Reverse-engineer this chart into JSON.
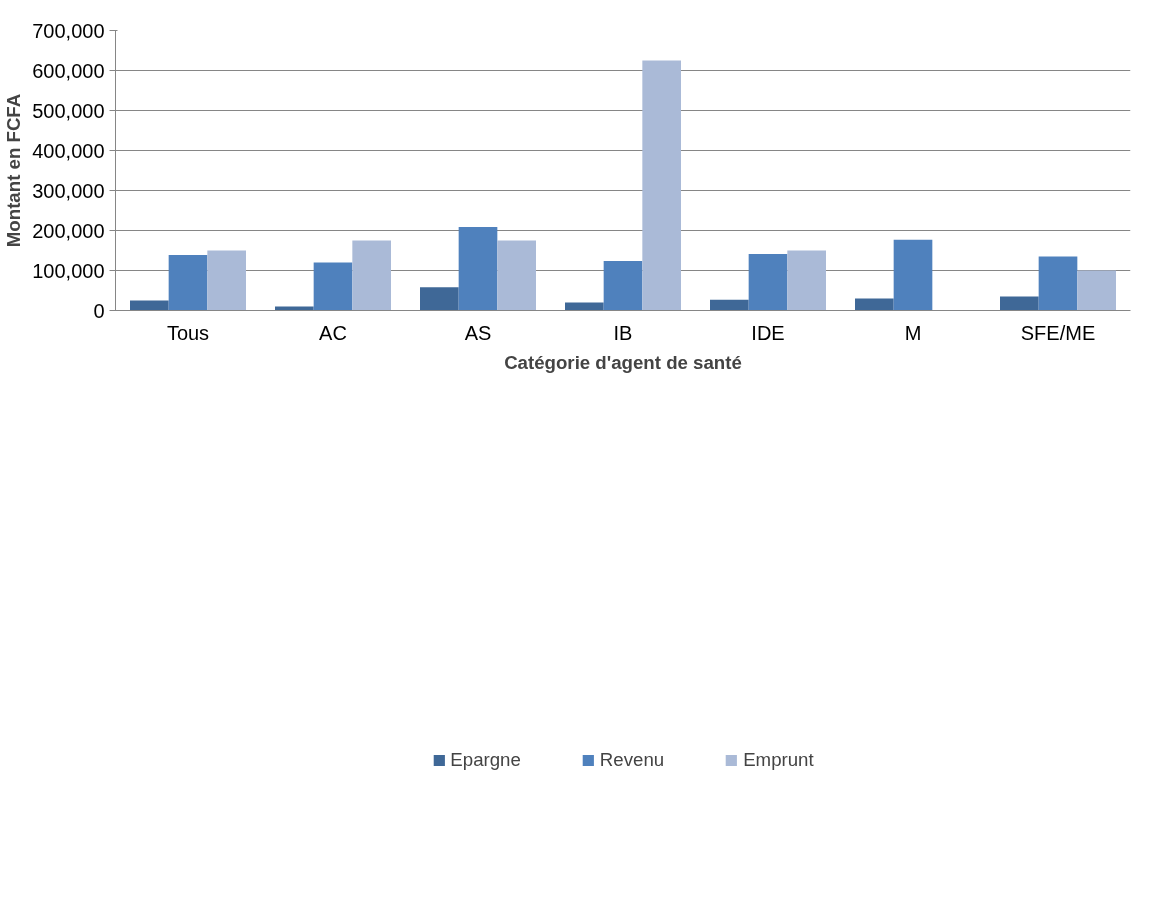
{
  "chart_data": {
    "type": "bar",
    "xlabel": "Catégorie d'agent de santé",
    "ylabel": "Montant en FCFA",
    "categories": [
      "Tous",
      "AC",
      "AS",
      "IB",
      "IDE",
      "M",
      "SFE/ME"
    ],
    "series": [
      {
        "name": "Epargne",
        "color": "#3f6897",
        "values": [
          25000,
          10000,
          58000,
          20000,
          27000,
          30000,
          35000
        ]
      },
      {
        "name": "Revenu",
        "color": "#4f81bd",
        "values": [
          139000,
          120000,
          209000,
          124000,
          141000,
          177000,
          135000
        ]
      },
      {
        "name": "Emprunt",
        "color": "#aabad7",
        "values": [
          150000,
          175000,
          175000,
          625000,
          150000,
          null,
          100000
        ]
      }
    ],
    "ylim": [
      0,
      700000
    ],
    "yticks": [
      {
        "value": 0,
        "label": "0"
      },
      {
        "value": 100000,
        "label": "100,000"
      },
      {
        "value": 200000,
        "label": "200,000"
      },
      {
        "value": 300000,
        "label": "300,000"
      },
      {
        "value": 400000,
        "label": "400,000"
      },
      {
        "value": 500000,
        "label": "500,000"
      },
      {
        "value": 600000,
        "label": "600,000"
      },
      {
        "value": 700000,
        "label": "700,000"
      }
    ],
    "grid": "y",
    "legend": "bottom"
  }
}
